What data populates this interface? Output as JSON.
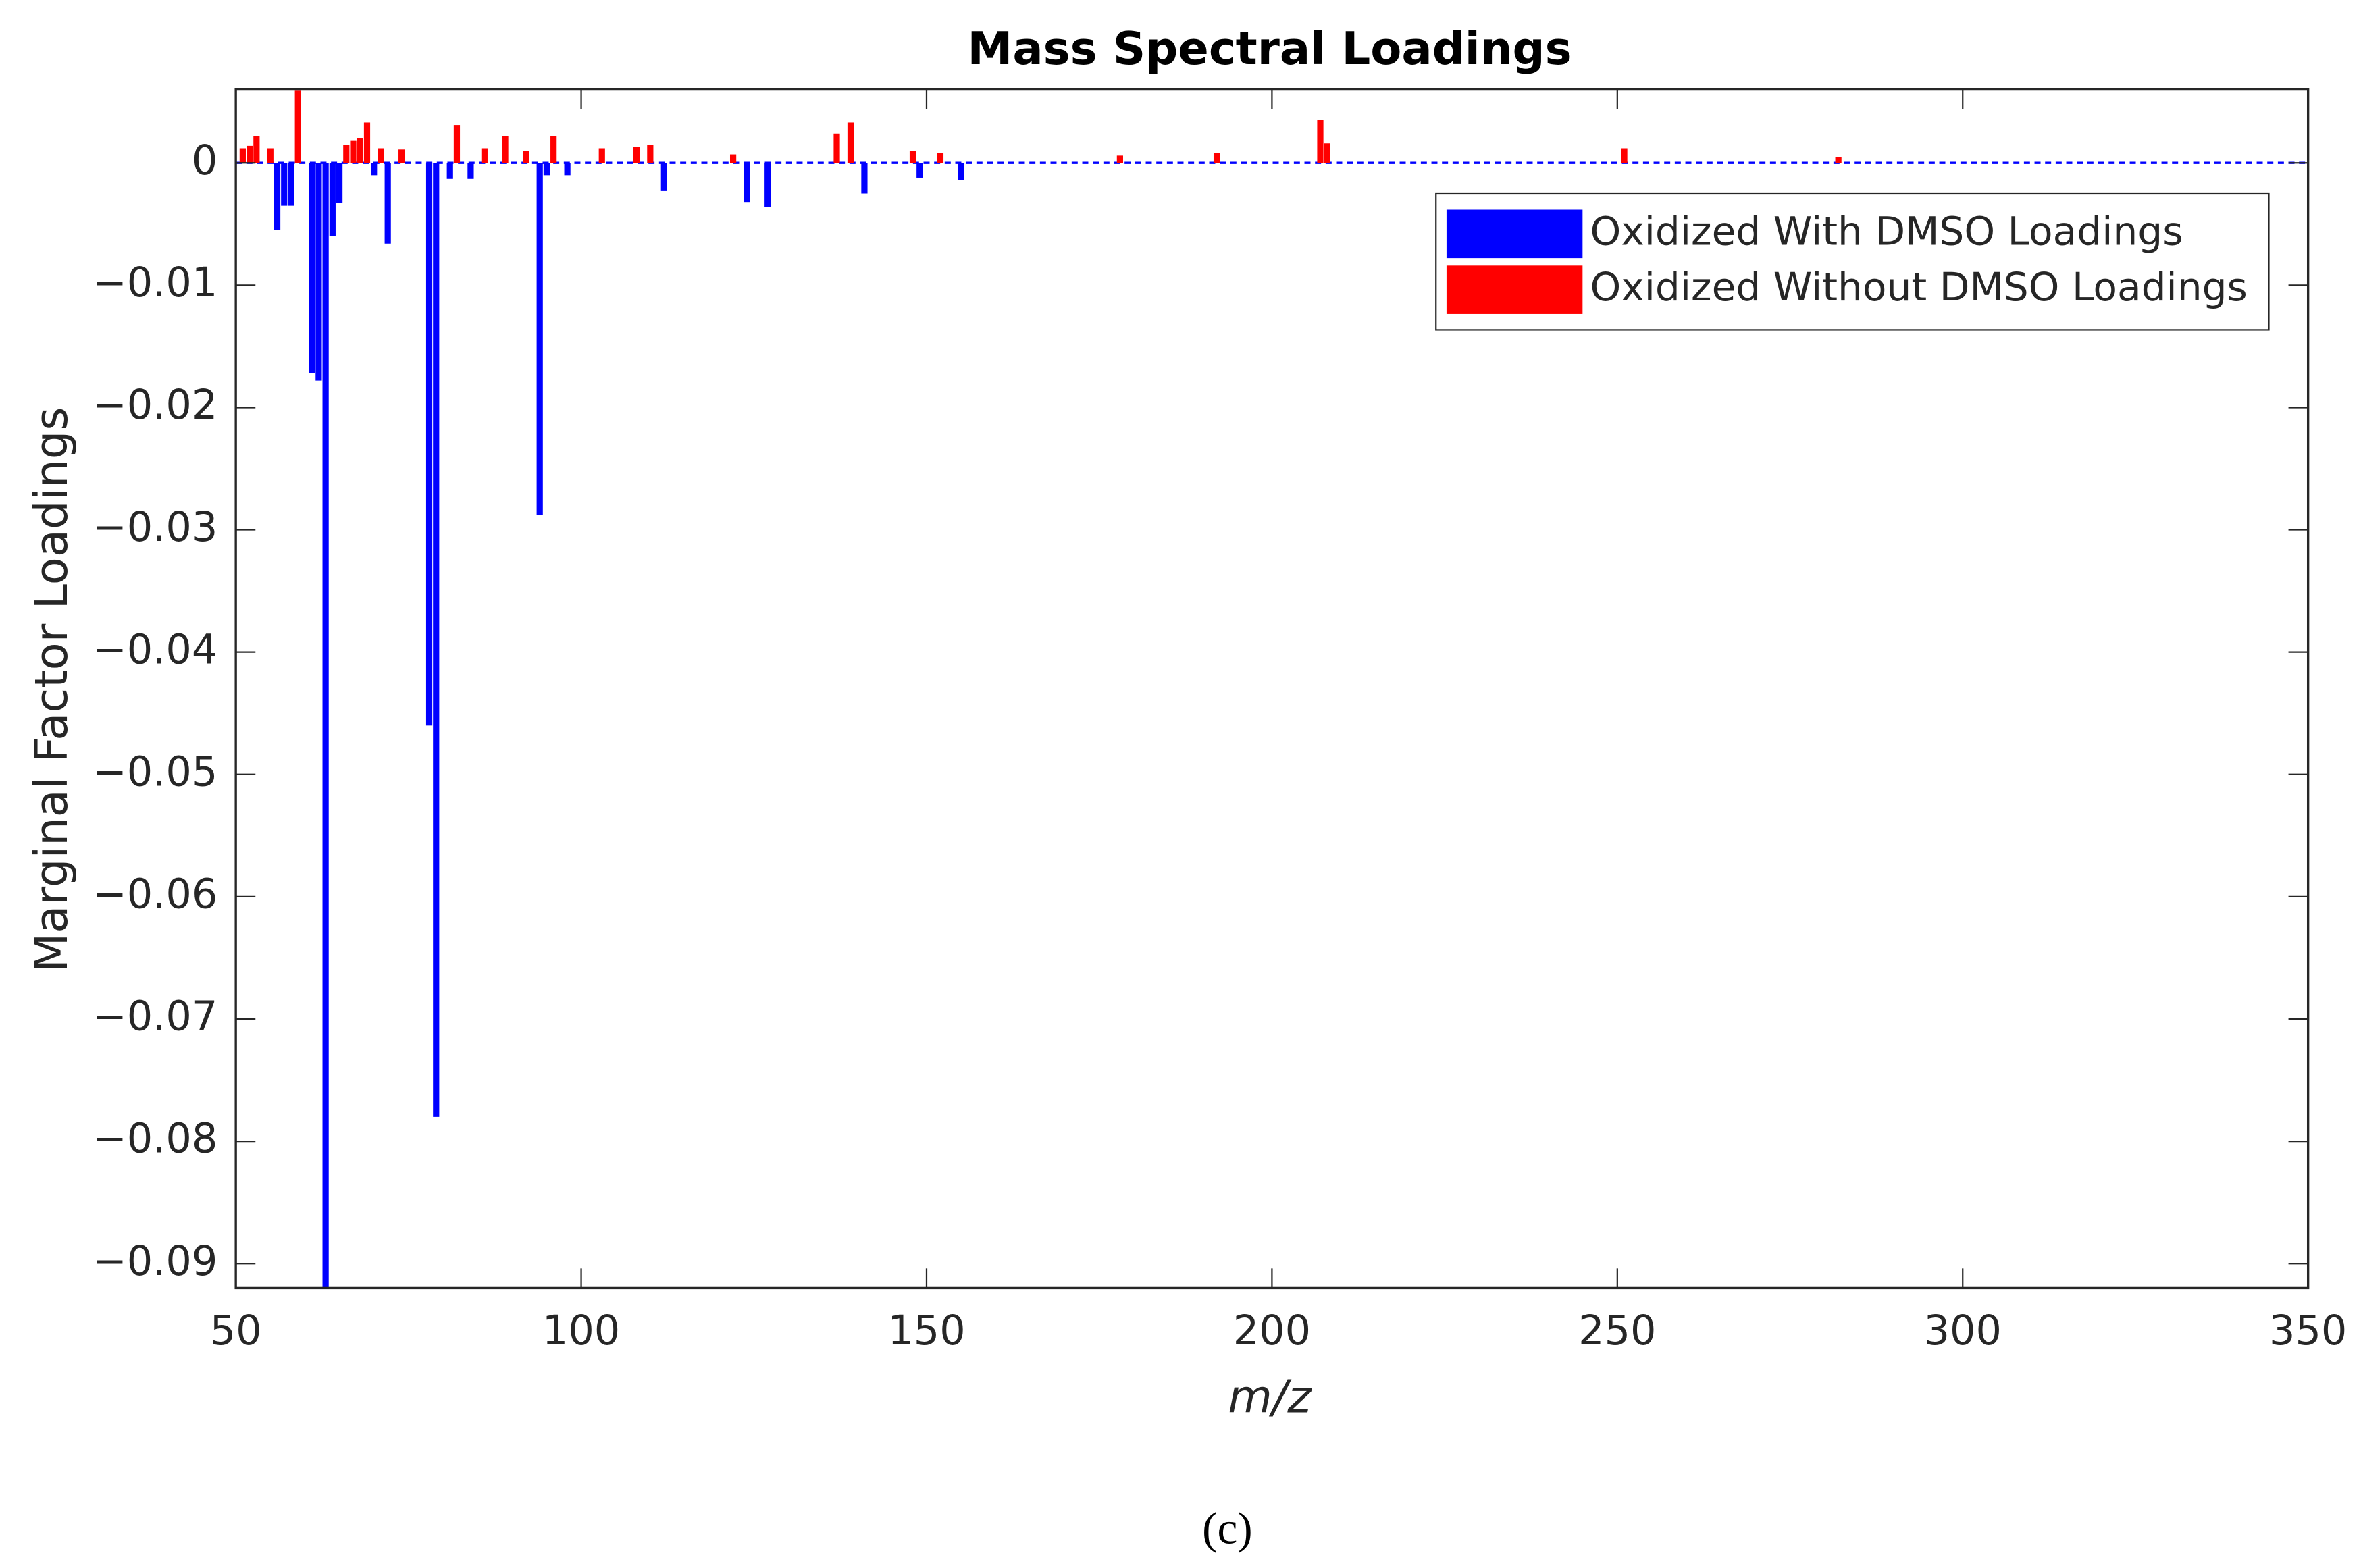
{
  "chart_data": {
    "type": "bar",
    "title": "Mass Spectral Loadings",
    "x_label": "m/z",
    "y_label": "Marginal Factor Loadings",
    "caption": "(c)",
    "x": [
      51,
      52,
      53,
      55,
      56,
      57,
      58,
      59,
      61,
      62,
      63,
      64,
      65,
      66,
      67,
      68,
      69,
      70,
      71,
      72,
      74,
      78,
      79,
      81,
      82,
      84,
      86,
      89,
      92,
      94,
      95,
      96,
      98,
      103,
      108,
      110,
      112,
      122,
      124,
      127,
      137,
      139,
      141,
      148,
      149,
      152,
      155,
      178,
      192,
      207,
      208,
      251,
      282
    ],
    "series": [
      {
        "name": "Oxidized With DMSO Loadings",
        "color": "#0000ff",
        "values": [
          0,
          0,
          0,
          0,
          -0.0055,
          -0.0035,
          -0.0035,
          0,
          -0.0172,
          -0.0178,
          -0.092,
          -0.006,
          -0.0033,
          0,
          0,
          0,
          0,
          -0.001,
          0,
          -0.0066,
          0,
          -0.046,
          -0.078,
          -0.0013,
          0,
          -0.0013,
          0,
          0,
          0,
          -0.0288,
          -0.001,
          0,
          -0.001,
          0,
          0,
          0,
          -0.0023,
          0,
          -0.0032,
          -0.0036,
          0,
          0,
          -0.0025,
          0,
          -0.0012,
          0,
          -0.0014,
          0,
          0,
          0,
          0,
          0,
          0
        ]
      },
      {
        "name": "Oxidized Without DMSO Loadings",
        "color": "#ff0000",
        "values": [
          0.0012,
          0.0014,
          0.0022,
          0.0012,
          0,
          0,
          0,
          0.0059,
          0,
          0,
          0,
          0,
          0,
          0.0015,
          0.0018,
          0.002,
          0.0033,
          0,
          0.0012,
          0,
          0.0011,
          0,
          0,
          0,
          0.0031,
          0,
          0.0012,
          0.0022,
          0.001,
          0,
          0,
          0.0022,
          0,
          0.0012,
          0.0013,
          0.0015,
          0,
          0.0007,
          0,
          0,
          0.0024,
          0.0033,
          0,
          0.001,
          0,
          0.0008,
          0,
          0.0006,
          0.0008,
          0.0035,
          0.0016,
          0.0012,
          0.0005
        ]
      }
    ],
    "xlim": [
      50,
      350
    ],
    "xticks": [
      50,
      100,
      150,
      200,
      250,
      300,
      350
    ],
    "ylim": [
      -0.092,
      0.006
    ],
    "yticks": [
      0,
      {
        "value": -0.01,
        "label": "−0.01"
      },
      {
        "value": -0.02,
        "label": "−0.02"
      },
      {
        "value": -0.03,
        "label": "−0.03"
      },
      {
        "value": -0.04,
        "label": "−0.04"
      },
      {
        "value": -0.05,
        "label": "−0.05"
      },
      {
        "value": -0.06,
        "label": "−0.06"
      },
      {
        "value": -0.07,
        "label": "−0.07"
      },
      {
        "value": -0.08,
        "label": "−0.08"
      },
      {
        "value": -0.09,
        "label": "−0.09"
      }
    ],
    "grid": false,
    "legend": "northeast"
  }
}
